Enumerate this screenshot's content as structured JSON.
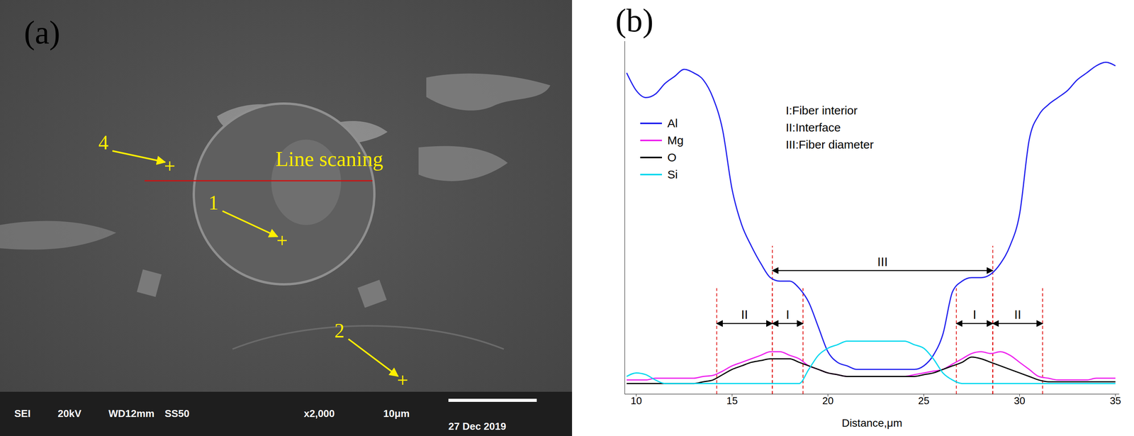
{
  "image": {
    "panel_label": "(a)",
    "annotation": "Line scaning",
    "points": [
      "4",
      "1",
      "2"
    ],
    "info_bar": [
      "SEI",
      "20kV",
      "WD12mm",
      "SS50",
      "x2,000",
      "10μm"
    ],
    "date": "27 Dec 2019"
  },
  "chart_data": {
    "type": "line",
    "panel_label": "(b)",
    "x_label": "Distance,μm",
    "x": [
      9.5,
      10,
      10.5,
      11,
      11.5,
      12,
      12.5,
      13,
      13.5,
      14,
      14.5,
      15,
      15.5,
      16,
      16.5,
      17,
      17.5,
      18,
      18.5,
      19,
      19.5,
      20,
      20.5,
      21,
      21.5,
      22,
      22.5,
      23,
      23.5,
      24,
      24.5,
      25,
      25.5,
      26,
      26.5,
      27,
      27.5,
      28,
      28.5,
      29,
      29.5,
      30,
      30.5,
      31,
      31.5,
      32,
      32.5,
      33,
      33.5,
      34,
      34.5,
      35
    ],
    "series": [
      {
        "name": "Al",
        "color": "#2222ee",
        "values": [
          91,
          86,
          84,
          85,
          88,
          90,
          92,
          91,
          89,
          84,
          75,
          58,
          48,
          42,
          37,
          33,
          32,
          32,
          30,
          26,
          19,
          12,
          9,
          8,
          7,
          7,
          7,
          7,
          7,
          7,
          7,
          8,
          11,
          17,
          29,
          32,
          33,
          33,
          34,
          37,
          42,
          51,
          72,
          79,
          82,
          84,
          86,
          89,
          91,
          93,
          94,
          93
        ]
      },
      {
        "name": "Mg",
        "color": "#ee22ee",
        "values": [
          4,
          4,
          4,
          4.5,
          4.5,
          4.5,
          4.5,
          4.5,
          5,
          5.3,
          6.5,
          8,
          9,
          10,
          11,
          12,
          12,
          11,
          10,
          8,
          7,
          6,
          5.5,
          5,
          5,
          5,
          5,
          5,
          5,
          5,
          5.5,
          6,
          6.5,
          7,
          8.5,
          10,
          11.5,
          12,
          11.5,
          12,
          11,
          9,
          7,
          5,
          4.5,
          4,
          4,
          4,
          4,
          4.5,
          4.5,
          4.5
        ]
      },
      {
        "name": "O",
        "color": "#000000",
        "values": [
          3,
          3,
          3,
          3,
          3,
          3,
          3,
          3,
          3.5,
          4,
          5.5,
          7,
          8,
          9,
          9.5,
          10,
          10,
          10,
          9,
          8,
          7,
          6,
          5.5,
          5,
          5,
          5,
          5,
          5,
          5,
          5,
          5,
          5.5,
          6,
          7,
          8,
          9,
          10.5,
          10,
          9,
          8,
          7,
          6,
          5,
          4,
          3.5,
          3.5,
          3.5,
          3.5,
          3.5,
          3.5,
          3.5,
          3.5
        ]
      },
      {
        "name": "Si",
        "color": "#00d8ee",
        "values": [
          5,
          6,
          5.5,
          4,
          3,
          3,
          3,
          3,
          3,
          3,
          3,
          3,
          3,
          3,
          3,
          3,
          3,
          3,
          3,
          7,
          11,
          13,
          14,
          15,
          15,
          15,
          15,
          15,
          15,
          15,
          14,
          13,
          10,
          6,
          4,
          3,
          3,
          3,
          3,
          3,
          3,
          3,
          3,
          3,
          3,
          3,
          3,
          3,
          3,
          3,
          3,
          3
        ]
      }
    ],
    "xlim": [
      9.4,
      35.2
    ],
    "xticks": [
      10,
      15,
      20,
      25,
      30,
      35
    ],
    "ylim": [
      0,
      100
    ],
    "tick_labels": "x",
    "legend": "upper left",
    "annotations": [
      "I:Fiber interior",
      "II:Interface",
      "III:Fiber diameter"
    ],
    "regions": [
      {
        "label": "II",
        "from": 14.2,
        "to": 17.1
      },
      {
        "label": "I",
        "from": 17.1,
        "to": 18.7
      },
      {
        "label": "III",
        "from": 17.1,
        "to": 28.6
      },
      {
        "label": "I",
        "from": 26.7,
        "to": 28.6
      },
      {
        "label": "II",
        "from": 28.6,
        "to": 31.2
      }
    ]
  }
}
